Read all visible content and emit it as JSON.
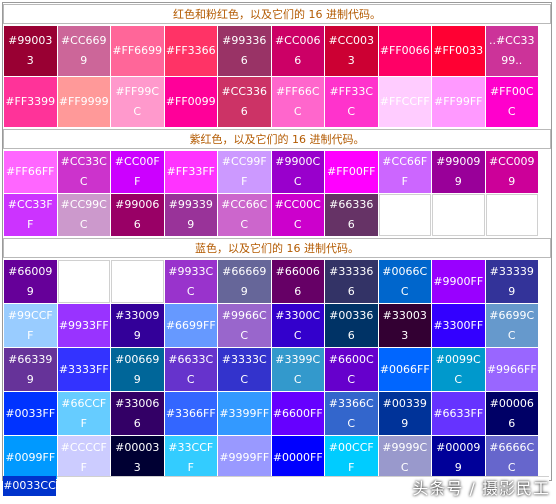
{
  "sections": [
    {
      "title": "红色和粉红色，以及它们的 16 进制代码。",
      "cells": [
        {
          "label": "#990033",
          "color": "#990033"
        },
        {
          "label": "#CC6699",
          "color": "#CC6699"
        },
        {
          "label": "#FF6699",
          "color": "#FF6699"
        },
        {
          "label": "#FF3366",
          "color": "#FF3366"
        },
        {
          "label": "#993366",
          "color": "#993366"
        },
        {
          "label": "#CC0066",
          "color": "#CC0066"
        },
        {
          "label": "#CC0033",
          "color": "#CC0033"
        },
        {
          "label": "#FF0066",
          "color": "#FF0066"
        },
        {
          "label": "#FF0033",
          "color": "#FF0033"
        },
        {
          "label": "..#CC3399..",
          "color": "#CC3399"
        },
        {
          "label": "#FF3399",
          "color": "#FF3399"
        },
        {
          "label": "#FF9999",
          "color": "#FF9999"
        },
        {
          "label": "#FF99CC",
          "color": "#FF99CC"
        },
        {
          "label": "#FF0099",
          "color": "#FF0099"
        },
        {
          "label": "#CC3366",
          "color": "#CC3366"
        },
        {
          "label": "#FF66CC",
          "color": "#FF66CC"
        },
        {
          "label": "#FF33CC",
          "color": "#FF33CC"
        },
        {
          "label": "#FFCCFF",
          "color": "#FFCCFF"
        },
        {
          "label": "#FF99FF",
          "color": "#FF99FF"
        },
        {
          "label": "#FF00CC",
          "color": "#FF00CC"
        }
      ]
    },
    {
      "title": "紫红色，以及它们的 16 进制代码。",
      "cells": [
        {
          "label": "#FF66FF",
          "color": "#FF66FF"
        },
        {
          "label": "#CC33CC",
          "color": "#CC33CC"
        },
        {
          "label": "#CC00FF",
          "color": "#CC00FF"
        },
        {
          "label": "#FF33FF",
          "color": "#FF33FF"
        },
        {
          "label": "#CC99FF",
          "color": "#CC99FF"
        },
        {
          "label": "#9900CC",
          "color": "#9900CC"
        },
        {
          "label": "#FF00FF",
          "color": "#FF00FF"
        },
        {
          "label": "#CC66FF",
          "color": "#CC66FF"
        },
        {
          "label": "#990099",
          "color": "#990099"
        },
        {
          "label": "#CC0099",
          "color": "#CC0099"
        },
        {
          "label": "#CC33FF",
          "color": "#CC33FF"
        },
        {
          "label": "#CC99CC",
          "color": "#CC99CC"
        },
        {
          "label": "#990066",
          "color": "#990066"
        },
        {
          "label": "#993399",
          "color": "#993399"
        },
        {
          "label": "#CC66CC",
          "color": "#CC66CC"
        },
        {
          "label": "#CC00CC",
          "color": "#CC00CC"
        },
        {
          "label": "#663366",
          "color": "#663366"
        },
        {
          "label": "",
          "color": ""
        },
        {
          "label": "",
          "color": ""
        },
        {
          "label": "",
          "color": ""
        }
      ]
    },
    {
      "title": "蓝色，以及它们的 16 进制代码。",
      "cells": [
        {
          "label": "#660099",
          "color": "#660099"
        },
        {
          "label": "",
          "color": ""
        },
        {
          "label": "",
          "color": ""
        },
        {
          "label": "#9933CC",
          "color": "#9933CC"
        },
        {
          "label": "#666699",
          "color": "#666699"
        },
        {
          "label": "#660066",
          "color": "#660066"
        },
        {
          "label": "#333366",
          "color": "#333366"
        },
        {
          "label": "#0066CC",
          "color": "#0066CC"
        },
        {
          "label": "#9900FF",
          "color": "#9900FF"
        },
        {
          "label": "#333399",
          "color": "#333399"
        },
        {
          "label": "#99CCFF",
          "color": "#99CCFF"
        },
        {
          "label": "#9933FF",
          "color": "#9933FF"
        },
        {
          "label": "#330099",
          "color": "#330099"
        },
        {
          "label": "#6699FF",
          "color": "#6699FF"
        },
        {
          "label": "#9966CC",
          "color": "#9966CC"
        },
        {
          "label": "#3300CC",
          "color": "#3300CC"
        },
        {
          "label": "#003366",
          "color": "#003366"
        },
        {
          "label": "#330033",
          "color": "#330033"
        },
        {
          "label": "#3300FF",
          "color": "#3300FF"
        },
        {
          "label": "#6699CC",
          "color": "#6699CC"
        },
        {
          "label": "#663399",
          "color": "#663399"
        },
        {
          "label": "#3333FF",
          "color": "#3333FF"
        },
        {
          "label": "#006699",
          "color": "#006699"
        },
        {
          "label": "#6633CC",
          "color": "#6633CC"
        },
        {
          "label": "#3333CC",
          "color": "#3333CC"
        },
        {
          "label": "#3399CC",
          "color": "#3399CC"
        },
        {
          "label": "#6600CC",
          "color": "#6600CC"
        },
        {
          "label": "#0066FF",
          "color": "#0066FF"
        },
        {
          "label": "#0099CC",
          "color": "#0099CC"
        },
        {
          "label": "#9966FF",
          "color": "#9966FF"
        },
        {
          "label": "#0033FF",
          "color": "#0033FF"
        },
        {
          "label": "#66CCFF",
          "color": "#66CCFF"
        },
        {
          "label": "#330066",
          "color": "#330066"
        },
        {
          "label": "#3366FF",
          "color": "#3366FF"
        },
        {
          "label": "#3399FF",
          "color": "#3399FF"
        },
        {
          "label": "#6600FF",
          "color": "#6600FF"
        },
        {
          "label": "#3366CC",
          "color": "#3366CC"
        },
        {
          "label": "#003399",
          "color": "#003399"
        },
        {
          "label": "#6633FF",
          "color": "#6633FF"
        },
        {
          "label": "#000066",
          "color": "#000066"
        },
        {
          "label": "#0099FF",
          "color": "#0099FF"
        },
        {
          "label": "#CCCCFF",
          "color": "#CCCCFF"
        },
        {
          "label": "#000033",
          "color": "#000033"
        },
        {
          "label": "#33CCFF",
          "color": "#33CCFF"
        },
        {
          "label": "#9999FF",
          "color": "#9999FF"
        },
        {
          "label": "#0000FF",
          "color": "#0000FF"
        },
        {
          "label": "#00CCFF",
          "color": "#00CCFF"
        },
        {
          "label": "#9999CC",
          "color": "#9999CC"
        },
        {
          "label": "#000099",
          "color": "#000099"
        },
        {
          "label": "#6666CC",
          "color": "#6666CC"
        }
      ]
    }
  ],
  "last_row": {
    "label": "#0033CC",
    "color": "#0033CC"
  },
  "watermark": "头条号 / 摄影民工"
}
